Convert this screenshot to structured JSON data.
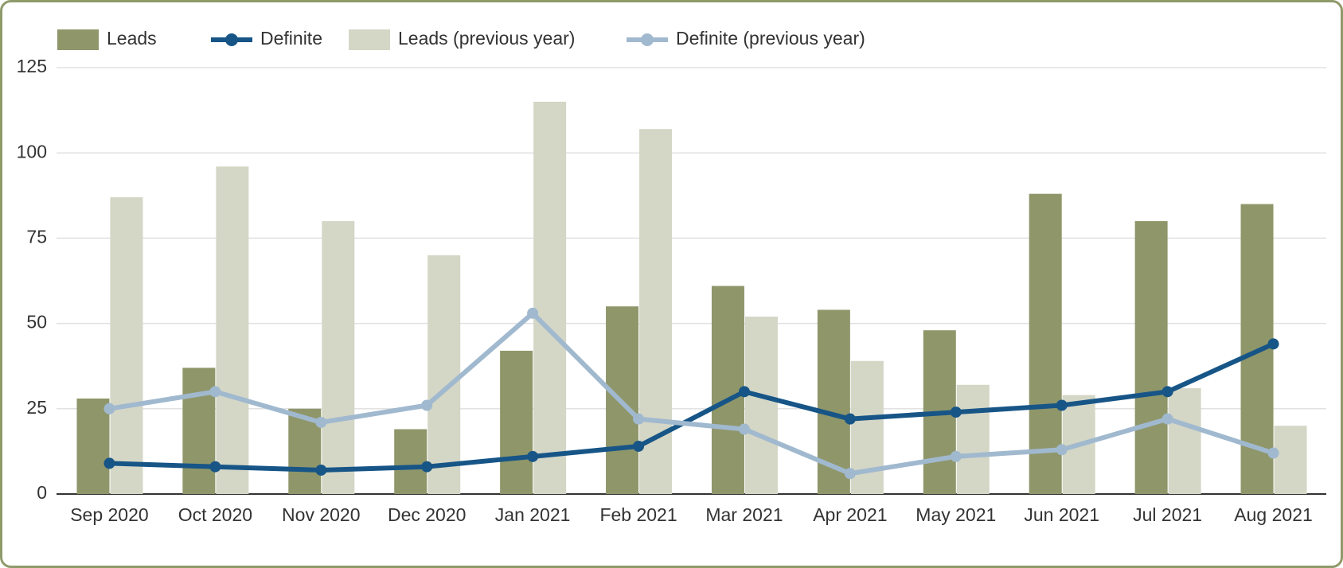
{
  "chart_data": {
    "type": "bar_line",
    "categories": [
      "Sep 2020",
      "Oct 2020",
      "Nov 2020",
      "Dec 2020",
      "Jan 2021",
      "Feb 2021",
      "Mar 2021",
      "Apr 2021",
      "May 2021",
      "Jun 2021",
      "Jul 2021",
      "Aug 2021"
    ],
    "series": [
      {
        "name": "Leads",
        "type": "bar",
        "color": "#8f966a",
        "values": [
          28,
          37,
          25,
          19,
          42,
          55,
          61,
          54,
          48,
          88,
          80,
          85
        ]
      },
      {
        "name": "Definite",
        "type": "line",
        "color": "#175587",
        "values": [
          9,
          8,
          7,
          8,
          11,
          14,
          30,
          22,
          24,
          26,
          30,
          44
        ]
      },
      {
        "name": "Leads (previous year)",
        "type": "bar",
        "color": "#d4d6c6",
        "values": [
          87,
          96,
          80,
          70,
          115,
          107,
          52,
          39,
          32,
          29,
          31,
          20
        ]
      },
      {
        "name": "Definite (previous year)",
        "type": "line",
        "color": "#a0b9cf",
        "values": [
          25,
          30,
          21,
          26,
          53,
          22,
          19,
          6,
          11,
          13,
          22,
          12
        ]
      }
    ],
    "ylim": [
      0,
      125
    ],
    "yticks": [
      0,
      25,
      50,
      75,
      100,
      125
    ],
    "grid": true,
    "legend": "top"
  }
}
